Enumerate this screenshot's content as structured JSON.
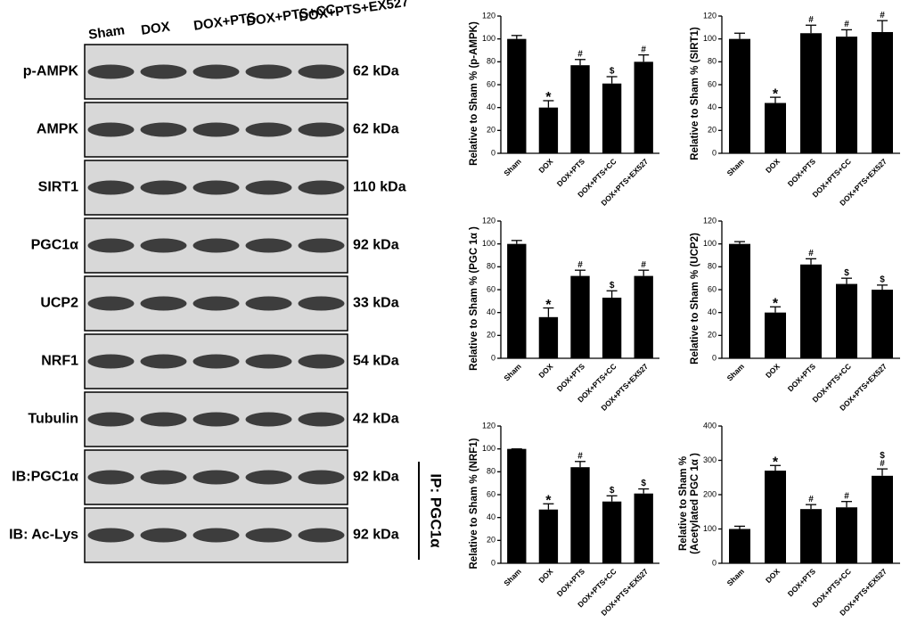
{
  "blot": {
    "lanes": [
      "Sham",
      "DOX",
      "DOX+PTS",
      "DOX+PTS+CC",
      "DOX+PTS+EX527"
    ],
    "rows": [
      {
        "label": "p-AMPK",
        "kda": "62 kDa"
      },
      {
        "label": "AMPK",
        "kda": "62 kDa"
      },
      {
        "label": "SIRT1",
        "kda": "110 kDa"
      },
      {
        "label": "PGC1α",
        "kda": "92 kDa"
      },
      {
        "label": "UCP2",
        "kda": "33 kDa"
      },
      {
        "label": "NRF1",
        "kda": "54 kDa"
      },
      {
        "label": "Tubulin",
        "kda": "42 kDa"
      },
      {
        "label": "IB:PGC1α",
        "kda": "92 kDa"
      },
      {
        "label": "IB: Ac-Lys",
        "kda": "92 kDa"
      }
    ],
    "ip_label": "IP: PGC1α"
  },
  "chart_data": [
    {
      "type": "bar",
      "ylabel": [
        "Relative to Sham % (p-AMPK)"
      ],
      "categories": [
        "Sham",
        "DOX",
        "DOX+PTS",
        "DOX+PTS+CC",
        "DOX+PTS+EX527"
      ],
      "values": [
        100,
        40,
        77,
        61,
        80
      ],
      "errors": [
        3,
        6,
        5,
        6,
        6
      ],
      "annotations": [
        [],
        [
          "*"
        ],
        [
          "#"
        ],
        [
          "$"
        ],
        [
          "#"
        ]
      ],
      "color": "#000000",
      "ylim": [
        0,
        120
      ],
      "yticks": [
        0,
        20,
        40,
        60,
        80,
        100,
        120
      ]
    },
    {
      "type": "bar",
      "ylabel": [
        "Relative to Sham % (SIRT1)"
      ],
      "categories": [
        "Sham",
        "DOX",
        "DOX+PTS",
        "DOX+PTS+CC",
        "DOX+PTS+EX527"
      ],
      "values": [
        100,
        44,
        105,
        102,
        106
      ],
      "errors": [
        5,
        5,
        7,
        6,
        10
      ],
      "annotations": [
        [],
        [
          "*"
        ],
        [
          "#"
        ],
        [
          "#"
        ],
        [
          "#"
        ]
      ],
      "color": "#000000",
      "ylim": [
        0,
        120
      ],
      "yticks": [
        0,
        20,
        40,
        60,
        80,
        100,
        120
      ]
    },
    {
      "type": "bar",
      "ylabel": [
        "Relative to Sham % (PGC 1α )"
      ],
      "categories": [
        "Sham",
        "DOX",
        "DOX+PTS",
        "DOX+PTS+CC",
        "DOX+PTS+EX527"
      ],
      "values": [
        100,
        36,
        72,
        53,
        72
      ],
      "errors": [
        3,
        8,
        5,
        6,
        5
      ],
      "annotations": [
        [],
        [
          "*"
        ],
        [
          "#"
        ],
        [
          "$"
        ],
        [
          "#"
        ]
      ],
      "color": "#000000",
      "ylim": [
        0,
        120
      ],
      "yticks": [
        0,
        20,
        40,
        60,
        80,
        100,
        120
      ]
    },
    {
      "type": "bar",
      "ylabel": [
        "Relative to Sham % (UCP2)"
      ],
      "categories": [
        "Sham",
        "DOX",
        "DOX+PTS",
        "DOX+PTS+CC",
        "DOX+PTS+EX527"
      ],
      "values": [
        100,
        40,
        82,
        65,
        60
      ],
      "errors": [
        2,
        5,
        5,
        5,
        4
      ],
      "annotations": [
        [],
        [
          "*"
        ],
        [
          "#"
        ],
        [
          "$"
        ],
        [
          "$"
        ]
      ],
      "color": "#000000",
      "ylim": [
        0,
        120
      ],
      "yticks": [
        0,
        20,
        40,
        60,
        80,
        100,
        120
      ]
    },
    {
      "type": "bar",
      "ylabel": [
        "Relative to Sham % (NRF1)"
      ],
      "categories": [
        "Sham",
        "DOX",
        "DOX+PTS",
        "DOX+PTS+CC",
        "DOX+PTS+EX527"
      ],
      "values": [
        100,
        47,
        84,
        54,
        61
      ],
      "errors": [
        0,
        5,
        5,
        5,
        4
      ],
      "annotations": [
        [],
        [
          "*"
        ],
        [
          "#"
        ],
        [
          "$"
        ],
        [
          "$"
        ]
      ],
      "color": "#000000",
      "ylim": [
        0,
        120
      ],
      "yticks": [
        0,
        20,
        40,
        60,
        80,
        100,
        120
      ]
    },
    {
      "type": "bar",
      "ylabel": [
        "Relative to Sham %",
        "(Acetylated PGC 1α )"
      ],
      "categories": [
        "Sham",
        "DOX",
        "DOX+PTS",
        "DOX+PTS+CC",
        "DOX+PTS+EX527"
      ],
      "values": [
        100,
        270,
        158,
        163,
        255
      ],
      "errors": [
        8,
        15,
        13,
        17,
        20
      ],
      "annotations": [
        [],
        [
          "*"
        ],
        [
          "#"
        ],
        [
          "#"
        ],
        [
          "$",
          "#"
        ]
      ],
      "color": "#000000",
      "ylim": [
        0,
        400
      ],
      "yticks": [
        0,
        100,
        200,
        300,
        400
      ]
    }
  ]
}
